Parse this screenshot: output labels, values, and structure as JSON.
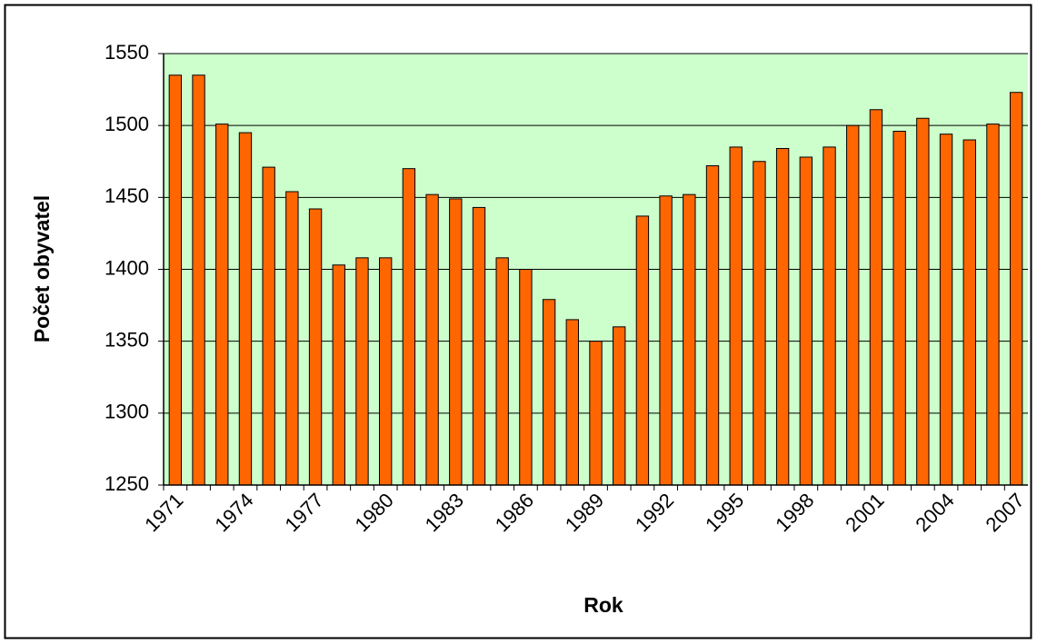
{
  "chart_data": {
    "type": "bar",
    "x_label": "Rok",
    "y_label": "Počet obyvatel",
    "categories": [
      "1971",
      null,
      null,
      "1974",
      null,
      null,
      "1977",
      null,
      null,
      "1980",
      null,
      null,
      "1983",
      null,
      null,
      "1986",
      null,
      null,
      "1989",
      null,
      null,
      "1992",
      null,
      null,
      "1995",
      null,
      null,
      "1998",
      null,
      null,
      "2001",
      null,
      null,
      "2004",
      null,
      null,
      "2007"
    ],
    "values": [
      1535,
      1535,
      1501,
      1495,
      1471,
      1454,
      1442,
      1403,
      1408,
      1408,
      1470,
      1452,
      1449,
      1443,
      1408,
      1400,
      1379,
      1365,
      1350,
      1360,
      1437,
      1451,
      1452,
      1472,
      1485,
      1475,
      1484,
      1478,
      1485,
      1500,
      1511,
      1496,
      1505,
      1494,
      1490,
      1501,
      1523
    ],
    "color": "#ff6600",
    "plot_background": "#ccffcc",
    "ylim": [
      1250,
      1550
    ],
    "yticks": [
      1250,
      1300,
      1350,
      1400,
      1450,
      1500,
      1550
    ],
    "grid": true
  }
}
